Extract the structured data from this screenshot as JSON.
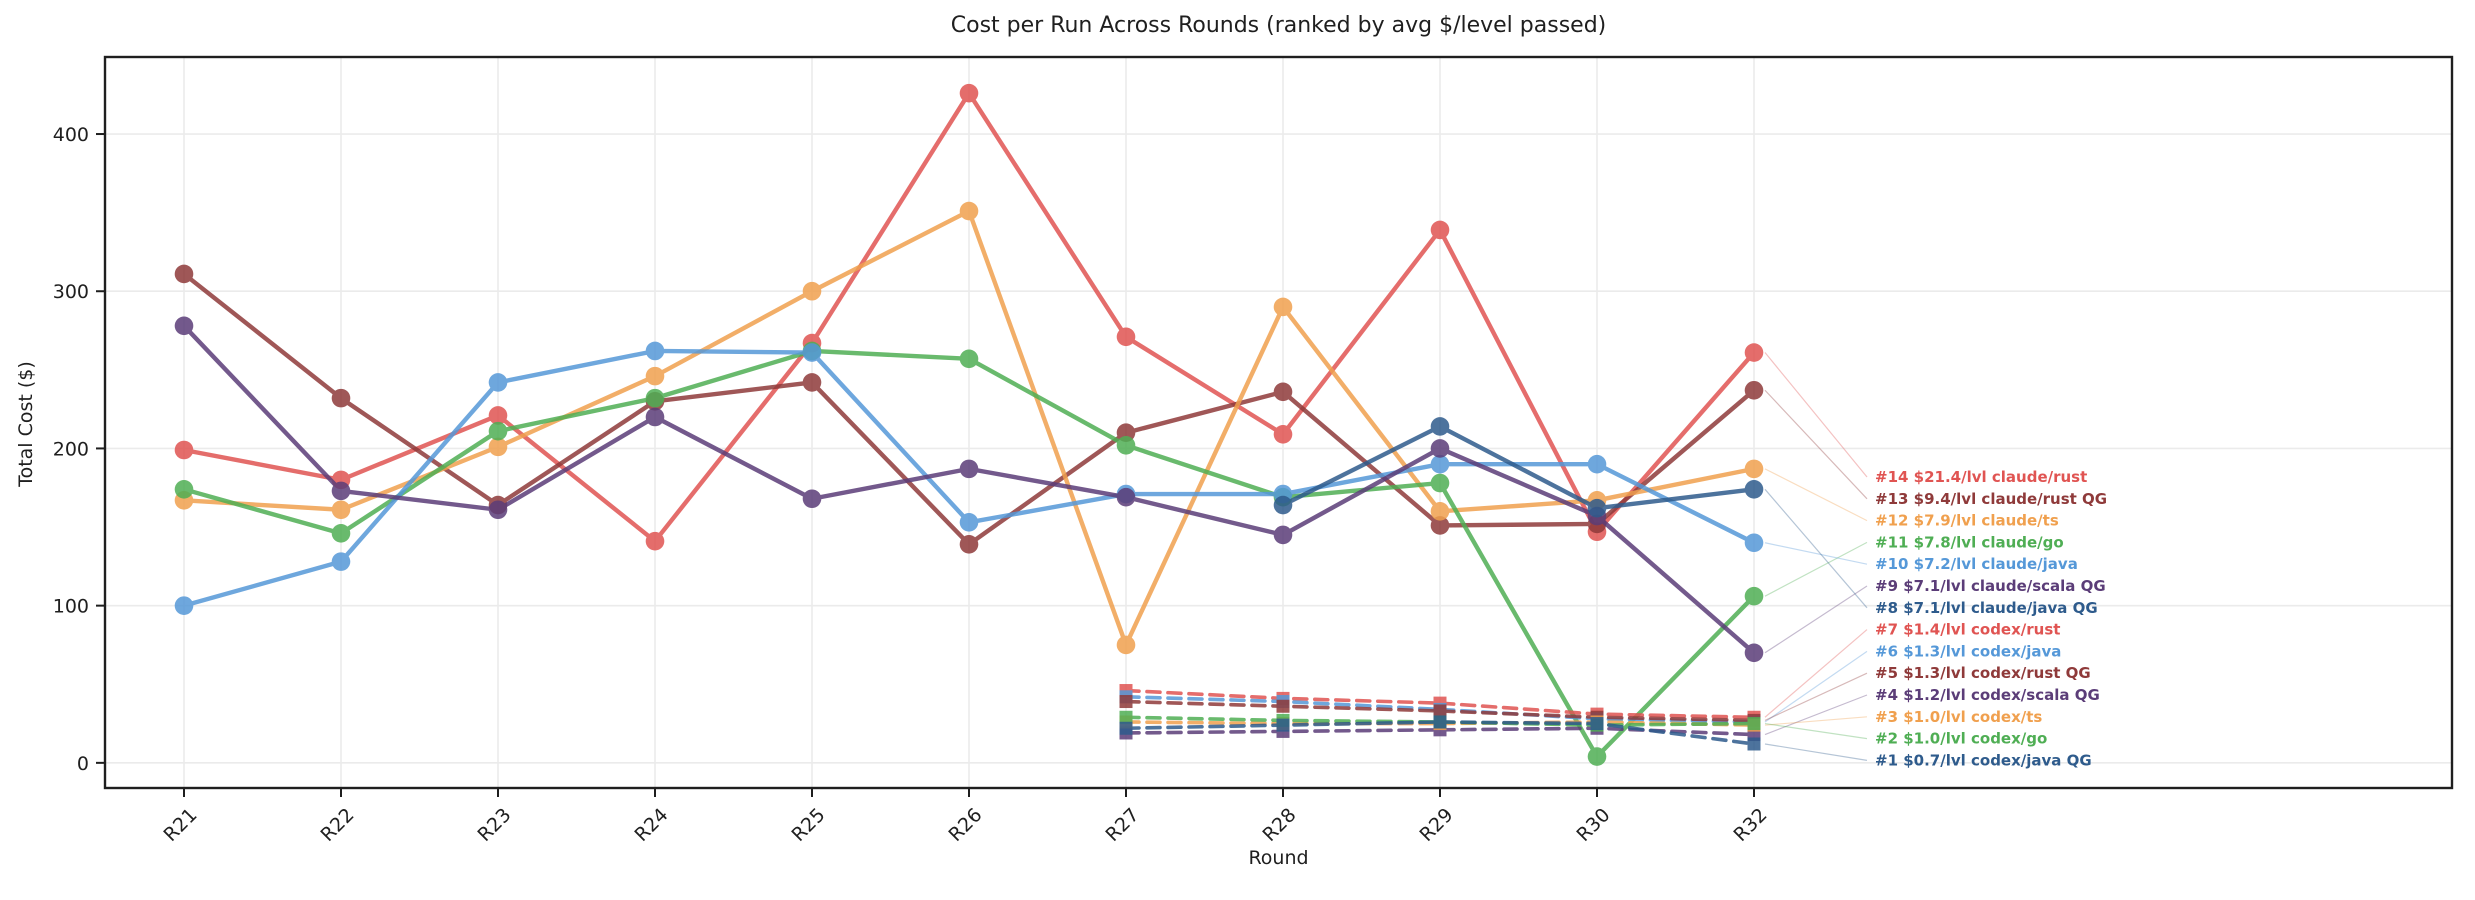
{
  "title": "Cost per Run Across Rounds (ranked by avg $/level passed)",
  "chart_data": {
    "type": "line",
    "title": "Cost per Run Across Rounds (ranked by avg $/level passed)",
    "xlabel": "Round",
    "ylabel": "Total Cost ($)",
    "categories": [
      "R21",
      "R22",
      "R23",
      "R24",
      "R25",
      "R26",
      "R27",
      "R28",
      "R29",
      "R30",
      "R32"
    ],
    "y_ticks": [
      0,
      100,
      200,
      300,
      400
    ],
    "ylim": [
      -16,
      449
    ],
    "grid": true,
    "legend_position": "right-inside",
    "palette": {
      "red": "#e05452",
      "maroon": "#8f3a3a",
      "orange": "#f0a04e",
      "green": "#4fae54",
      "blue": "#5598d8",
      "purple": "#5b3d78",
      "navy": "#2e5b8c"
    },
    "series": [
      {
        "name": "claude/rust",
        "legend_label": "#14 $21.4/lvl claude/rust",
        "color": "red",
        "line_style": "solid",
        "marker": "circle",
        "values": [
          199,
          180,
          221,
          141,
          267,
          426,
          271,
          209,
          339,
          147,
          261
        ]
      },
      {
        "name": "claude/rust QG",
        "legend_label": "#13 $9.4/lvl claude/rust QG",
        "color": "maroon",
        "line_style": "solid",
        "marker": "circle",
        "values": [
          311,
          232,
          164,
          230,
          242,
          139,
          210,
          236,
          151,
          152,
          237
        ]
      },
      {
        "name": "claude/ts",
        "legend_label": "#12 $7.9/lvl claude/ts",
        "color": "orange",
        "line_style": "solid",
        "marker": "circle",
        "values": [
          167,
          161,
          201,
          246,
          300,
          351,
          75,
          290,
          160,
          167,
          187
        ]
      },
      {
        "name": "claude/go",
        "legend_label": "#11 $7.8/lvl claude/go",
        "color": "green",
        "line_style": "solid",
        "marker": "circle",
        "values": [
          174,
          146,
          211,
          232,
          262,
          257,
          202,
          169,
          178,
          4,
          106
        ]
      },
      {
        "name": "claude/java",
        "legend_label": "#10 $7.2/lvl claude/java",
        "color": "blue",
        "line_style": "solid",
        "marker": "circle",
        "values": [
          100,
          128,
          242,
          262,
          261,
          153,
          171,
          171,
          190,
          190,
          140
        ]
      },
      {
        "name": "claude/scala QG",
        "legend_label": "#9 $7.1/lvl claude/scala QG",
        "color": "purple",
        "line_style": "solid",
        "marker": "circle",
        "values": [
          278,
          173,
          161,
          220,
          168,
          187,
          169,
          145,
          200,
          157,
          70
        ]
      },
      {
        "name": "claude/java QG",
        "legend_label": "#8 $7.1/lvl claude/java QG",
        "color": "navy",
        "line_style": "solid",
        "marker": "circle",
        "values": [
          null,
          null,
          null,
          null,
          null,
          null,
          null,
          164,
          214,
          162,
          174
        ]
      },
      {
        "name": "codex/rust",
        "legend_label": "#7 $1.4/lvl codex/rust",
        "color": "red",
        "line_style": "dashed",
        "marker": "square",
        "values": [
          null,
          null,
          null,
          null,
          null,
          null,
          46,
          41,
          38,
          31,
          29
        ]
      },
      {
        "name": "codex/java",
        "legend_label": "#6 $1.3/lvl codex/java",
        "color": "blue",
        "line_style": "dashed",
        "marker": "square",
        "values": [
          null,
          null,
          null,
          null,
          null,
          null,
          42,
          39,
          34,
          28,
          26
        ]
      },
      {
        "name": "codex/rust QG",
        "legend_label": "#5 $1.3/lvl codex/rust QG",
        "color": "maroon",
        "line_style": "dashed",
        "marker": "square",
        "values": [
          null,
          null,
          null,
          null,
          null,
          null,
          39,
          36,
          33,
          29,
          27
        ]
      },
      {
        "name": "codex/scala QG",
        "legend_label": "#4 $1.2/lvl codex/scala QG",
        "color": "purple",
        "line_style": "dashed",
        "marker": "square",
        "values": [
          null,
          null,
          null,
          null,
          null,
          null,
          19,
          20,
          21,
          22,
          18
        ]
      },
      {
        "name": "codex/ts",
        "legend_label": "#3 $1.0/lvl codex/ts",
        "color": "orange",
        "line_style": "dashed",
        "marker": "square",
        "values": [
          null,
          null,
          null,
          null,
          null,
          null,
          26,
          25,
          25,
          26,
          24
        ]
      },
      {
        "name": "codex/go",
        "legend_label": "#2 $1.0/lvl codex/go",
        "color": "green",
        "line_style": "dashed",
        "marker": "square",
        "values": [
          null,
          null,
          null,
          null,
          null,
          null,
          29,
          27,
          26,
          24,
          25
        ]
      },
      {
        "name": "codex/java QG",
        "legend_label": "#1 $0.7/lvl codex/java QG",
        "color": "navy",
        "line_style": "dashed",
        "marker": "square",
        "values": [
          null,
          null,
          null,
          null,
          null,
          null,
          22,
          24,
          26,
          25,
          12
        ]
      }
    ]
  }
}
